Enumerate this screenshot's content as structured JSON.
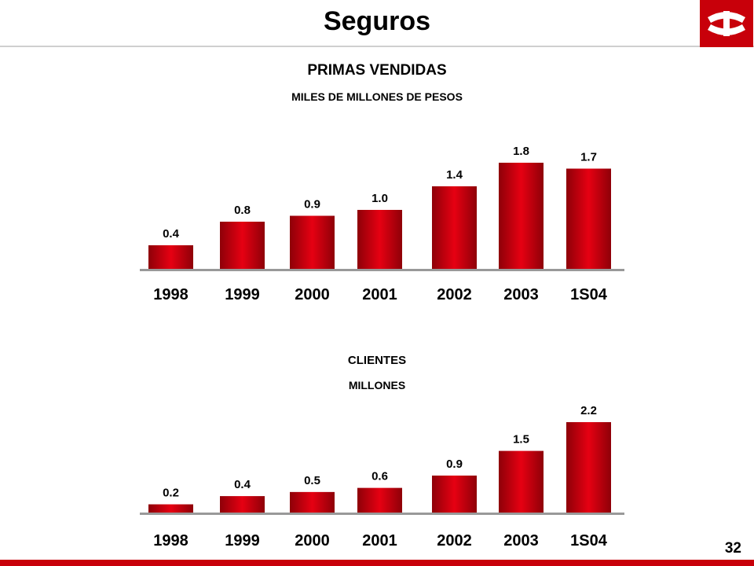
{
  "header": {
    "title": "Seguros",
    "logo": "bank-logo-icon"
  },
  "colors": {
    "bar_dark": "#8e0008",
    "bar_light": "#e60012",
    "accent": "#c8000a"
  },
  "footer": {
    "page_number": "32"
  },
  "chart_data": [
    {
      "type": "bar",
      "title": "PRIMAS VENDIDAS",
      "subtitle": "MILES DE MILLONES DE PESOS",
      "categories": [
        "1998",
        "1999",
        "2000",
        "2001",
        "2002",
        "2003",
        "1S04"
      ],
      "values": [
        0.4,
        0.8,
        0.9,
        1.0,
        1.4,
        1.8,
        1.7
      ],
      "value_labels": [
        "0.4",
        "0.8",
        "0.9",
        "1.0",
        "1.4",
        "1.8",
        "1.7"
      ],
      "ylim": [
        0,
        1.8
      ],
      "grid": false
    },
    {
      "type": "bar",
      "title": "CLIENTES",
      "subtitle": "MILLONES",
      "categories": [
        "1998",
        "1999",
        "2000",
        "2001",
        "2002",
        "2003",
        "1S04"
      ],
      "values": [
        0.2,
        0.4,
        0.5,
        0.6,
        0.9,
        1.5,
        2.2
      ],
      "value_labels": [
        "0.2",
        "0.4",
        "0.5",
        "0.6",
        "0.9",
        "1.5",
        "2.2"
      ],
      "ylim": [
        0,
        2.2
      ],
      "grid": false
    }
  ]
}
